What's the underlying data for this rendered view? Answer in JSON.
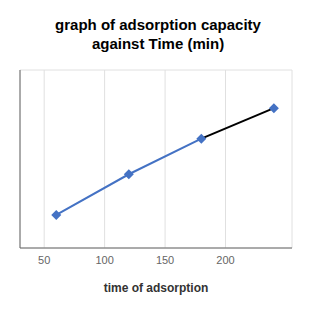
{
  "chart_data": {
    "type": "line",
    "title": "graph of adsorption capacity\nagainst Time (min)",
    "x_label": "time of adsorption",
    "x": [
      60,
      120,
      180,
      240
    ],
    "series": [
      {
        "type": "line",
        "color": "#4472C4",
        "marker": "none",
        "values": [
          0.28,
          0.44,
          0.58,
          null
        ]
      },
      {
        "type": "line",
        "color": "#000000",
        "marker": "none",
        "values": [
          null,
          null,
          0.58,
          0.7
        ]
      },
      {
        "type": "scatter",
        "color": "#4472C4",
        "marker": "diamond",
        "values": [
          0.28,
          0.44,
          0.58,
          0.7
        ]
      }
    ],
    "xlim": [
      30,
      255
    ],
    "xticks": [
      50,
      100,
      150,
      200
    ],
    "ylim": [
      0.15,
      0.85
    ],
    "yticks": [
      0.2,
      0.3,
      0.4,
      0.5,
      0.6,
      0.7,
      0.8
    ],
    "grid": true,
    "tick_labels": "x"
  }
}
